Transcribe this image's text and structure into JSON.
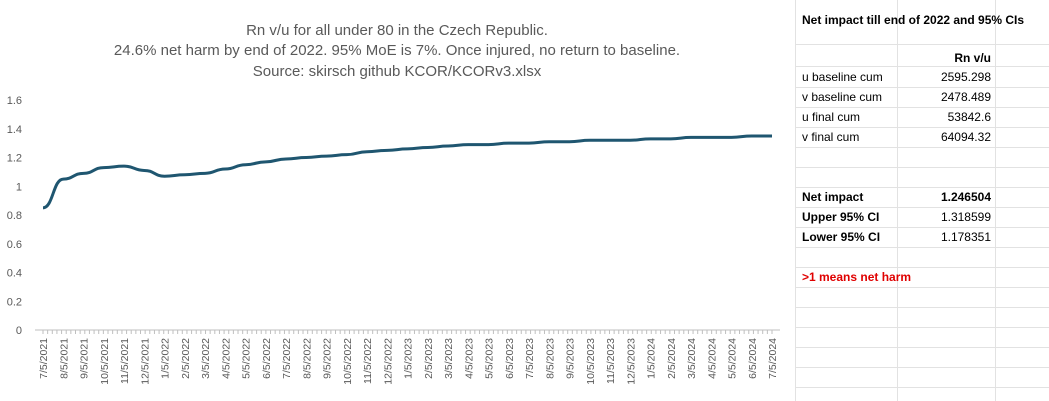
{
  "chart_data": {
    "type": "line",
    "title": "Rn v/u for all under 80 in the Czech Republic.",
    "subtitle": "24.6% net harm by end of 2022. 95% MoE is 7%. Once injured, no return to baseline.",
    "source": "Source: skirsch github KCOR/KCORv3.xlsx",
    "categories": [
      "7/5/2021",
      "8/5/2021",
      "9/5/2021",
      "10/5/2021",
      "11/5/2021",
      "12/5/2021",
      "1/5/2022",
      "2/5/2022",
      "3/5/2022",
      "4/5/2022",
      "5/5/2022",
      "6/5/2022",
      "7/5/2022",
      "8/5/2022",
      "9/5/2022",
      "10/5/2022",
      "11/5/2022",
      "12/5/2022",
      "1/5/2023",
      "2/5/2023",
      "3/5/2023",
      "4/5/2023",
      "5/5/2023",
      "6/5/2023",
      "7/5/2023",
      "8/5/2023",
      "9/5/2023",
      "10/5/2023",
      "11/5/2023",
      "12/5/2023",
      "1/5/2024",
      "2/5/2024",
      "3/5/2024",
      "4/5/2024",
      "5/5/2024",
      "6/5/2024",
      "7/5/2024"
    ],
    "y_ticks": [
      "0",
      "0.2",
      "0.4",
      "0.6",
      "0.8",
      "1",
      "1.2",
      "1.4",
      "1.6"
    ],
    "ylim": [
      0,
      1.6
    ],
    "series": [
      {
        "color": "#1f5670",
        "values": [
          0.85,
          1.05,
          1.09,
          1.13,
          1.14,
          1.11,
          1.07,
          1.08,
          1.09,
          1.12,
          1.15,
          1.17,
          1.19,
          1.2,
          1.21,
          1.22,
          1.24,
          1.25,
          1.26,
          1.27,
          1.28,
          1.29,
          1.29,
          1.3,
          1.3,
          1.31,
          1.31,
          1.32,
          1.32,
          1.32,
          1.33,
          1.33,
          1.34,
          1.34,
          1.34,
          1.35,
          1.35
        ]
      }
    ],
    "grid": false
  },
  "table": {
    "header": "Net impact till end of 2022 and 95% CIs",
    "col_header": "Rn v/u",
    "rows": [
      {
        "label": "u baseline cum",
        "value": "2595.298"
      },
      {
        "label": "v baseline cum",
        "value": "2478.489"
      },
      {
        "label": "u final cum",
        "value": "53842.6"
      },
      {
        "label": "v final cum",
        "value": "64094.32"
      }
    ],
    "summary": [
      {
        "label": "Net impact",
        "value": "1.246504"
      },
      {
        "label": "Upper 95% CI",
        "value": "1.318599"
      },
      {
        "label": "Lower 95% CI",
        "value": "1.178351"
      }
    ],
    "note": ">1 means net harm"
  }
}
